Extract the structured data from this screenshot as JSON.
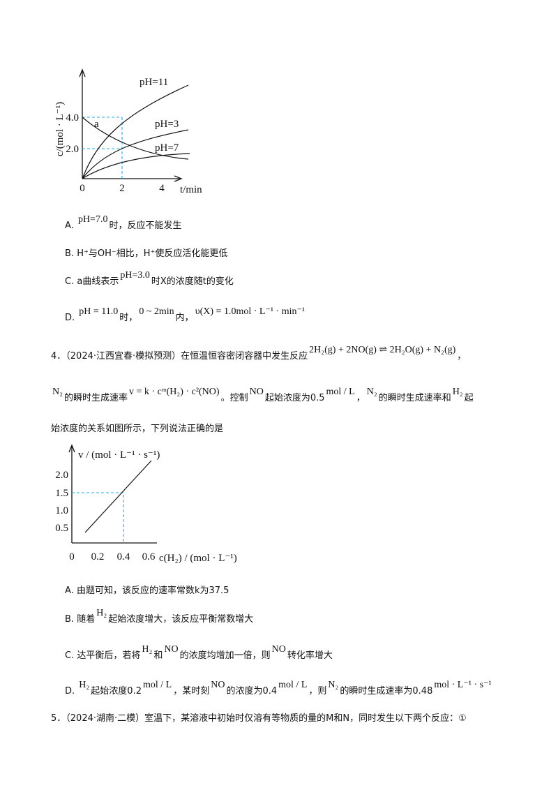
{
  "figure1": {
    "y_label": "c/(mol · L⁻¹)",
    "x_label": "t/min",
    "x_ticks": [
      "0",
      "2",
      "4"
    ],
    "y_ticks": [
      "4.0",
      "2.0"
    ],
    "curve_labels": [
      "pH=11",
      "pH=3",
      "pH=7",
      "a"
    ]
  },
  "q3_options": [
    [
      "A.",
      "pH=7.0",
      "时，反应不能发生"
    ],
    [
      "B.",
      "H⁺与OH⁻相比，H⁺使反应活化能更低"
    ],
    [
      "C.",
      "a曲线表示",
      "pH=3.0",
      "时X的浓度随t的变化"
    ],
    [
      "D.",
      "pH = 11.0",
      "时，",
      "0 ~ 2min",
      "内，",
      "υ(X) = 1.0mol · L⁻¹ · min⁻¹"
    ]
  ],
  "q4": {
    "lines": [
      [
        "4．",
        "（2024·江西宜春·模拟预测）在恒温恒容密闭容器中发生反应",
        "2H₂(g) + 2NO(g) ⇌ 2H₂O(g) + N₂(g)",
        "，"
      ],
      [
        "N₂",
        "的瞬时生成速率",
        "v = k · cᵐ(H₂) · c²(NO)",
        "。控制",
        "NO",
        "起始浓度为0.5",
        "mol / L",
        "，",
        "N₂",
        "的瞬时生成速率和",
        "H₂",
        "起"
      ],
      [
        "始浓度的关系如图所示，下列说法正确的是"
      ]
    ],
    "figure": {
      "y_label": "v / (mol · L⁻¹ · s⁻¹)",
      "x_label": "c(H₂) / (mol · L⁻¹)",
      "x_ticks": [
        "0",
        "0.2",
        "0.4",
        "0.6"
      ],
      "y_ticks": [
        "2.0",
        "1.5",
        "1.0",
        "0.5"
      ]
    },
    "options": [
      [
        "A.",
        "由题可知，该反应的速率常数k为37.5"
      ],
      [
        "B.",
        "随着",
        "H₂",
        "起始浓度增大，该反应平衡常数增大"
      ],
      [
        "C.",
        "达平衡后，若将",
        "H₂",
        "和",
        "NO",
        "的浓度均增加一倍，则",
        "NO",
        "转化率增大"
      ],
      [
        "D.",
        "H₂",
        "起始浓度0.2",
        "mol / L",
        "，某时刻",
        "NO",
        "的浓度为0.4",
        "mol / L",
        "，则",
        "N₂",
        "的瞬时生成速率为0.48",
        "mol · L⁻¹ · s⁻¹"
      ]
    ]
  },
  "q5": [
    "5．",
    "（2024·湖南·二模）室温下，某溶液中初始时仅溶有等物质的量的M和N，同时发生以下两个反应：①"
  ]
}
